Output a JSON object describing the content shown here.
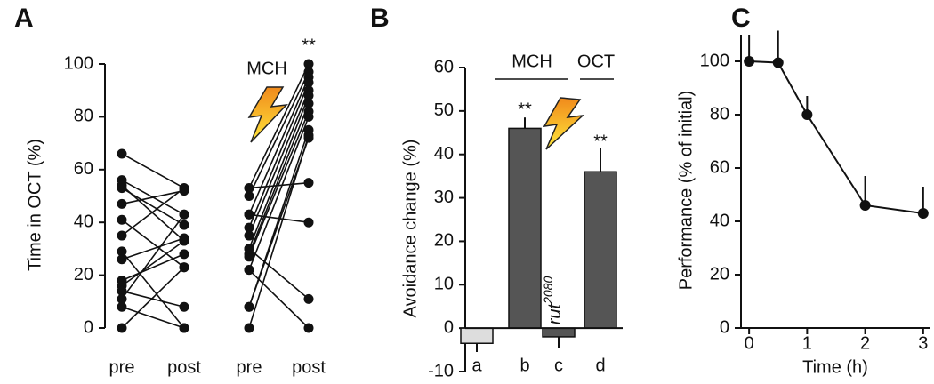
{
  "chart_data": [
    {
      "type": "line",
      "panel_label": "A",
      "y_label": "Time in OCT (%)",
      "categories": [
        "pre",
        "post",
        "pre",
        "post"
      ],
      "color": "#111111",
      "ylim": [
        0,
        100
      ],
      "yticks": [
        0,
        20,
        40,
        60,
        80,
        100
      ],
      "annotations": [
        "MCH",
        "**"
      ],
      "series": [
        {
          "values": [
            66,
            53,
            null,
            null
          ]
        },
        {
          "values": [
            56,
            43,
            null,
            null
          ]
        },
        {
          "values": [
            54,
            33,
            null,
            null
          ]
        },
        {
          "values": [
            53,
            39,
            null,
            null
          ]
        },
        {
          "values": [
            47,
            52,
            null,
            null
          ]
        },
        {
          "values": [
            41,
            23,
            null,
            null
          ]
        },
        {
          "values": [
            35,
            53,
            null,
            null
          ]
        },
        {
          "values": [
            29,
            0,
            null,
            null
          ]
        },
        {
          "values": [
            26,
            34,
            null,
            null
          ]
        },
        {
          "values": [
            18,
            28,
            null,
            null
          ]
        },
        {
          "values": [
            16,
            33,
            null,
            null
          ]
        },
        {
          "values": [
            14,
            8,
            null,
            null
          ]
        },
        {
          "values": [
            11,
            43,
            null,
            null
          ]
        },
        {
          "values": [
            8,
            0,
            null,
            null
          ]
        },
        {
          "values": [
            0,
            23,
            null,
            null
          ]
        },
        {
          "values": [
            null,
            null,
            53,
            100
          ]
        },
        {
          "values": [
            null,
            null,
            50,
            97
          ]
        },
        {
          "values": [
            null,
            null,
            43,
            95
          ]
        },
        {
          "values": [
            null,
            null,
            38,
            93
          ]
        },
        {
          "values": [
            null,
            null,
            35,
            90
          ]
        },
        {
          "values": [
            null,
            null,
            30,
            88
          ]
        },
        {
          "values": [
            null,
            null,
            28,
            85
          ]
        },
        {
          "values": [
            null,
            null,
            27,
            82
          ]
        },
        {
          "values": [
            null,
            null,
            22,
            80
          ]
        },
        {
          "values": [
            null,
            null,
            8,
            75
          ]
        },
        {
          "values": [
            null,
            null,
            0,
            73
          ]
        },
        {
          "values": [
            null,
            null,
            53,
            55
          ]
        },
        {
          "values": [
            null,
            null,
            43,
            40
          ]
        },
        {
          "values": [
            null,
            null,
            30,
            11
          ]
        },
        {
          "values": [
            null,
            null,
            8,
            72
          ]
        },
        {
          "values": [
            null,
            null,
            22,
            0
          ]
        }
      ]
    },
    {
      "type": "bar",
      "panel_label": "B",
      "y_label": "Avoidance change (%)",
      "categories": [
        "a",
        "b",
        "c",
        "d"
      ],
      "values": [
        -3.5,
        46,
        -2,
        36
      ],
      "errors": [
        2,
        2.5,
        2.5,
        5.5
      ],
      "colors": [
        "#dddddd",
        "#555555",
        "#555555",
        "#555555"
      ],
      "ylim": [
        -10,
        60
      ],
      "yticks": [
        -10,
        0,
        10,
        20,
        30,
        40,
        50,
        60
      ],
      "annotations": [
        "MCH",
        "OCT",
        "**",
        "**"
      ],
      "genotype_label": {
        "text": "rut",
        "superscript": "2080"
      }
    },
    {
      "type": "line",
      "panel_label": "C",
      "y_label": "Performance (% of initial)",
      "x_label": "Time (h)",
      "x": [
        0,
        0.5,
        1,
        2,
        3
      ],
      "values": [
        100,
        99.5,
        80,
        46,
        43
      ],
      "errors": [
        10,
        12,
        7,
        11,
        10
      ],
      "color": "#111111",
      "xlim": [
        -0.14,
        3.11
      ],
      "xticks": [
        0,
        1,
        2,
        3
      ],
      "ylim": [
        0,
        110
      ],
      "yticks": [
        0,
        20,
        40,
        60,
        80,
        100
      ]
    }
  ]
}
